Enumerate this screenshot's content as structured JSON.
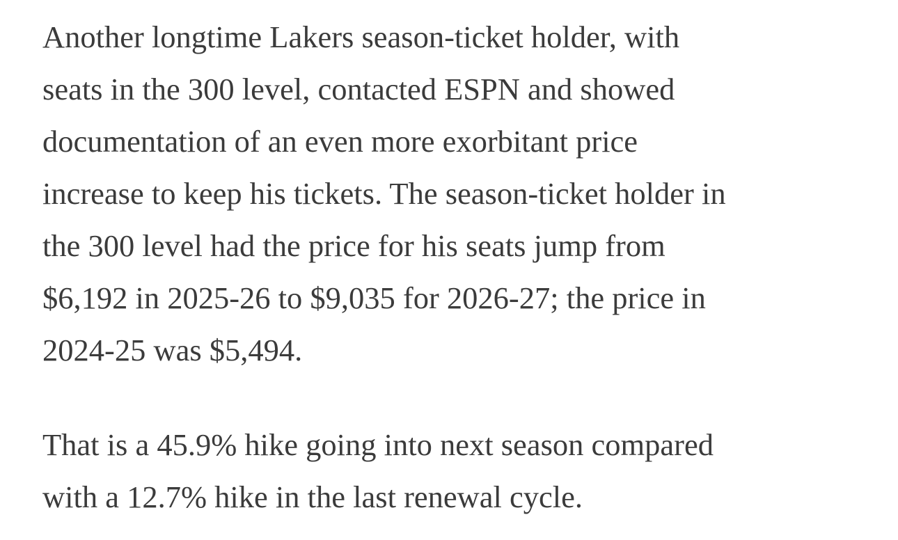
{
  "article": {
    "paragraphs": [
      "Another longtime Lakers season-ticket holder, with\nseats in the 300 level, contacted ESPN and showed\ndocumentation of an even more exorbitant price\nincrease to keep his tickets. The season-ticket holder in\nthe 300 level had the price for his seats jump from\n$6,192 in 2025-26 to $9,035 for 2026-27; the price in\n2024-25 was $5,494.",
      "That is a 45.9% hike going into next season compared\nwith a 12.7% hike in the last renewal cycle."
    ]
  }
}
